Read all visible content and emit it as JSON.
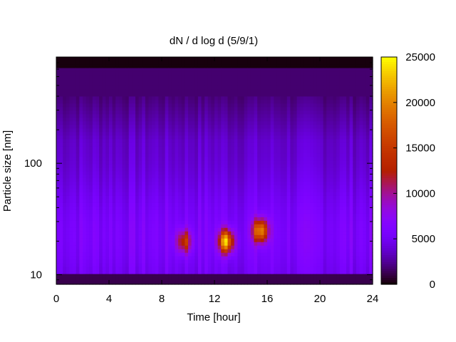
{
  "chart_data": {
    "type": "heatmap",
    "title": "dN / d log d (5/9/1)",
    "xlabel": "Time [hour]",
    "ylabel": "Particle size [nm]",
    "x_range": [
      0,
      24
    ],
    "x_ticks": [
      0,
      4,
      8,
      12,
      16,
      20,
      24
    ],
    "y_scale": "log",
    "y_range": [
      8.2,
      900
    ],
    "y_ticks": [
      10,
      100
    ],
    "colorbar": {
      "range": [
        0,
        25000
      ],
      "ticks": [
        0,
        5000,
        10000,
        15000,
        20000,
        25000
      ],
      "colormap": "black-purple-red-orange-yellow"
    },
    "background_level": 4000,
    "features": [
      {
        "time_hour": 9.7,
        "size_nm": 20,
        "value": 13000
      },
      {
        "time_hour": 12.9,
        "size_nm": 20,
        "value": 21000
      },
      {
        "time_hour": 15.5,
        "size_nm": 25,
        "value": 19000
      }
    ],
    "grid": false,
    "legend": "colorbar-right"
  }
}
